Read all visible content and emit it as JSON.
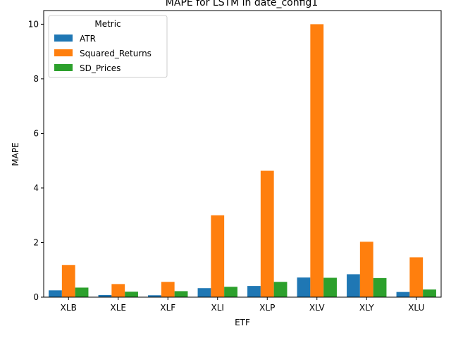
{
  "chart_data": {
    "type": "bar",
    "title": "MAPE for LSTM in date_config1",
    "xlabel": "ETF",
    "ylabel": "MAPE",
    "categories": [
      "XLB",
      "XLE",
      "XLF",
      "XLI",
      "XLP",
      "XLV",
      "XLY",
      "XLU"
    ],
    "ylim": [
      0,
      10.5
    ],
    "yticks": [
      0,
      2,
      4,
      6,
      8,
      10
    ],
    "grid": false,
    "legend": {
      "title": "Metric",
      "placement": "top-left"
    },
    "series": [
      {
        "name": "ATR",
        "color": "#1f77b4",
        "values": [
          0.25,
          0.08,
          0.07,
          0.33,
          0.41,
          0.72,
          0.84,
          0.19
        ]
      },
      {
        "name": "Squared_Returns",
        "color": "#ff7f0e",
        "values": [
          1.18,
          0.48,
          0.56,
          3.0,
          4.63,
          10.0,
          2.03,
          1.46
        ]
      },
      {
        "name": "SD_Prices",
        "color": "#2ca02c",
        "values": [
          0.35,
          0.2,
          0.22,
          0.38,
          0.56,
          0.71,
          0.7,
          0.28
        ]
      }
    ]
  }
}
